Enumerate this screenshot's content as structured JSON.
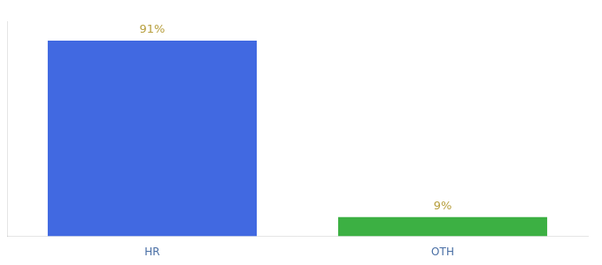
{
  "chart_data": {
    "type": "bar",
    "categories": [
      "HR",
      "OTH"
    ],
    "values": [
      91,
      9
    ],
    "value_labels": [
      "91%",
      "9%"
    ],
    "colors": [
      "#4169e1",
      "#3cb043"
    ],
    "ylim": [
      0,
      100
    ],
    "data_labels": true,
    "tick_labels": "x",
    "grid": false
  }
}
